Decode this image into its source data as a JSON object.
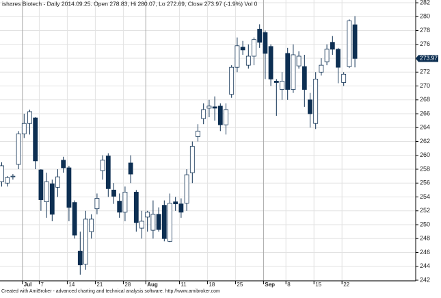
{
  "chart_data": {
    "type": "candlestick",
    "title": "ishares Biotech - Daily 2014.09.25. Open 278.83, Hi 280.07, Lo 272.69, Close 273.97 (-1.9%) Vol 0",
    "footer": "Created with AmiBroker - advanced charting and technical analysis software. http://www.amibroker.com",
    "categories": [
      null,
      null,
      null,
      null,
      "Jul",
      null,
      null,
      "7",
      null,
      null,
      null,
      null,
      "14",
      null,
      null,
      null,
      null,
      "21",
      null,
      null,
      null,
      null,
      "28",
      null,
      null,
      null,
      "Aug",
      null,
      null,
      null,
      null,
      null,
      "11",
      null,
      null,
      null,
      null,
      "18",
      null,
      null,
      null,
      null,
      "25",
      null,
      null,
      null,
      null,
      "Sep",
      null,
      null,
      null,
      "8",
      null,
      null,
      null,
      null,
      "15",
      null,
      null,
      null,
      null,
      "22",
      null,
      null
    ],
    "open": [
      256.2,
      256.0,
      257.0,
      258.7,
      263.1,
      264.6,
      265.4,
      257.9,
      253.3,
      255.9,
      255.4,
      259.3,
      258.2,
      253.2,
      246.2,
      244.3,
      249.0,
      252.3,
      257.8,
      259.9,
      255.0,
      253.4,
      251.8,
      258.9,
      254.7,
      249.5,
      251.1,
      249.2,
      251.5,
      252.8,
      247.6,
      253.3,
      253.0,
      253.1,
      257.5,
      262.7,
      265.3,
      266.8,
      267.0,
      267.1,
      264.4,
      268.8,
      272.7,
      275.6,
      273.0,
      274.3,
      278.2,
      277.7,
      275.7,
      270.7,
      269.5,
      274.7,
      269.5,
      272.9,
      272.8,
      268.0,
      264.6,
      272.0,
      273.5,
      276.3,
      275.3,
      270.5,
      272.8,
      278.83
    ],
    "high": [
      259,
      257,
      257.3,
      263.5,
      266,
      266.6,
      265.5,
      258,
      257.5,
      256.5,
      258,
      259.8,
      258.5,
      253.5,
      249,
      252,
      251.5,
      254.5,
      260,
      260.3,
      256,
      254.5,
      255.5,
      260,
      255,
      252,
      252,
      253.5,
      252.5,
      253.5,
      254.5,
      254,
      253.8,
      258,
      262,
      264.5,
      267.5,
      268,
      268.5,
      267.5,
      267.5,
      273,
      277,
      276.5,
      276,
      277,
      278.9,
      278,
      276,
      271,
      272,
      275.5,
      276,
      275,
      274.5,
      269,
      272,
      274,
      276,
      277.2,
      275.5,
      272,
      279.6,
      280.07
    ],
    "low": [
      255.5,
      255.5,
      256.5,
      258,
      262.5,
      263,
      258,
      252,
      251,
      250.5,
      254,
      257.5,
      250.5,
      248,
      242.8,
      243.5,
      248,
      251.5,
      256.5,
      254,
      253,
      251,
      250.5,
      256,
      249,
      248,
      249,
      248,
      249,
      247.6,
      247.5,
      252,
      251,
      252,
      256,
      262,
      264.5,
      265.5,
      265,
      263.5,
      263,
      268.3,
      272,
      274.5,
      272.5,
      273,
      275.5,
      271,
      270,
      265.7,
      268,
      268,
      269,
      272.5,
      267,
      264,
      263.8,
      271.5,
      273,
      274.5,
      270.4,
      270,
      272.6,
      272.69
    ],
    "close": [
      258.5,
      256.8,
      257.0,
      263.1,
      264.6,
      266.3,
      259.2,
      253.6,
      256.2,
      251.5,
      256.9,
      258.2,
      252.5,
      248.5,
      244.2,
      250.8,
      250.8,
      253.8,
      259.3,
      255.2,
      254.1,
      251.8,
      254.7,
      257.3,
      250.3,
      250.5,
      251.8,
      251.5,
      249.3,
      248.0,
      253.1,
      253.0,
      251.8,
      257.2,
      261.3,
      263.5,
      266.6,
      267.1,
      266.8,
      264.4,
      266.6,
      272.7,
      275.8,
      275.2,
      274.3,
      276.7,
      276.3,
      274.7,
      271.0,
      270.5,
      270.7,
      269.5,
      274.5,
      274.3,
      269.5,
      266.0,
      271.0,
      273.0,
      275.3,
      275.3,
      272.7,
      271.7,
      279.4,
      273.97
    ],
    "last_value": 273.97,
    "up_color": "#ffffff",
    "down_color": "#0d2f52",
    "outline_color": "#0d2f52",
    "ylim": [
      241.9,
      282.4
    ],
    "yticks": [
      242,
      244,
      246,
      248,
      250,
      252,
      254,
      256,
      258,
      260,
      262,
      264,
      266,
      268,
      270,
      272,
      274,
      276,
      278,
      280,
      282
    ],
    "grid": true
  }
}
